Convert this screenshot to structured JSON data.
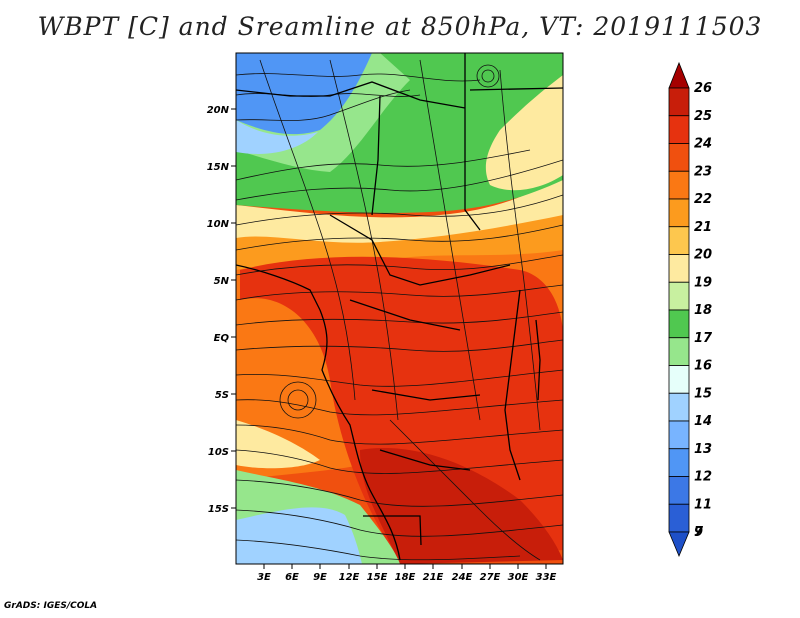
{
  "title": "WBPT [C] and Sreamline at 850hPa, VT: 2019111503",
  "credit": "GrADS: IGES/COLA",
  "y_axis_labels": [
    "20N",
    "15N",
    "10N",
    "5N",
    "EQ",
    "5S",
    "10S",
    "15S"
  ],
  "x_axis_labels": [
    "3E",
    "6E",
    "9E",
    "12E",
    "15E",
    "18E",
    "21E",
    "24E",
    "27E",
    "30E",
    "33E"
  ],
  "colorbar": {
    "labels": [
      "26",
      "25",
      "24",
      "23",
      "22",
      "21",
      "20",
      "19",
      "18",
      "17",
      "16",
      "15",
      "14",
      "13",
      "12",
      "11",
      "9",
      "7"
    ],
    "colors": [
      "#a50000",
      "#c81e0a",
      "#e6320f",
      "#f0500f",
      "#fa7814",
      "#fc9b1e",
      "#fdc74e",
      "#feeaa0",
      "#c8f0a0",
      "#50c850",
      "#96e68c",
      "#e6fffa",
      "#a0d2ff",
      "#78b4ff",
      "#5096f5",
      "#3c78e6",
      "#2a5fd6",
      "#1e50c8"
    ]
  },
  "palette": {
    "red_dark": "#c81e0a",
    "red": "#e6320f",
    "orange_red": "#f0500f",
    "orange": "#fa7814",
    "amber": "#fc9b1e",
    "yellow": "#feeaa0",
    "light_green": "#96e68c",
    "green": "#50c850",
    "pale_blue": "#a0d2ff",
    "blue": "#5096f5"
  }
}
